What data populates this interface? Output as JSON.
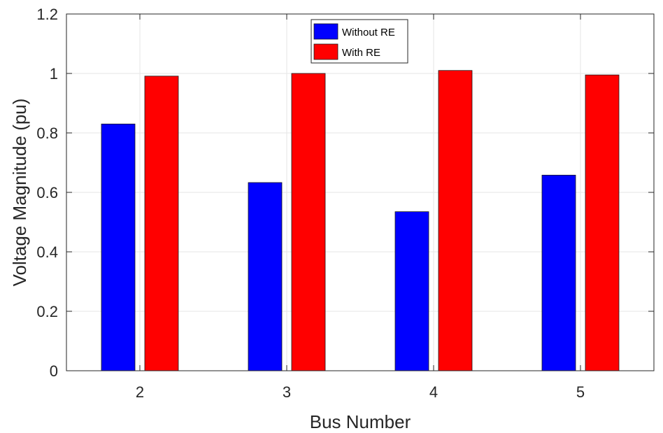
{
  "chart_data": {
    "type": "bar",
    "categories": [
      "2",
      "3",
      "4",
      "5"
    ],
    "series": [
      {
        "name": "Without RE",
        "values": [
          0.83,
          0.633,
          0.535,
          0.658
        ],
        "color": "#0000ff"
      },
      {
        "name": "With RE",
        "values": [
          0.991,
          1.0,
          1.01,
          0.995
        ],
        "color": "#ff0000"
      }
    ],
    "xlabel": "Bus Number",
    "ylabel": "Voltage Magnitude (pu)",
    "ylim": [
      0,
      1.2
    ],
    "yticks": [
      "0",
      "0.2",
      "0.4",
      "0.6",
      "0.8",
      "1",
      "1.2"
    ],
    "grid": true,
    "legend_position": "top-center"
  }
}
